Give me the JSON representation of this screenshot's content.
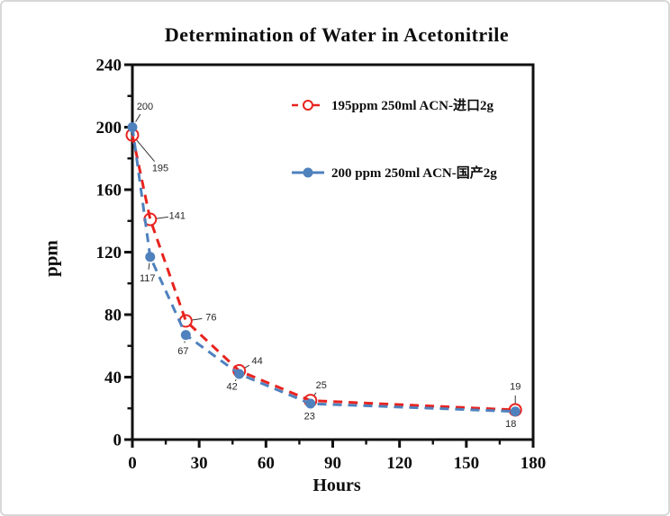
{
  "chart_data": {
    "type": "line",
    "title": "Determination of Water in Acetonitrile",
    "xlabel": "Hours",
    "ylabel": "ppm",
    "xlim": [
      0,
      180
    ],
    "ylim": [
      0,
      240
    ],
    "x_major_ticks": [
      0,
      30,
      60,
      90,
      120,
      150,
      180
    ],
    "x_minor_ticks": [
      15,
      45,
      75,
      105,
      135,
      165
    ],
    "y_major_ticks": [
      0,
      40,
      80,
      120,
      160,
      200,
      240
    ],
    "y_minor_ticks": [
      20,
      60,
      100,
      140,
      180,
      220
    ],
    "grid": false,
    "legend_position": "inside-top-center",
    "frame_color": "#111111",
    "tick_label_color": "#0d0d0d",
    "point_label_color": "#262626",
    "leader_line_color": "#333333",
    "series": [
      {
        "name": "195ppm  250ml ACN-进口2g",
        "color": "#e8231f",
        "line_style": "dashed",
        "marker": "open-circle",
        "x": [
          0,
          8,
          24,
          48,
          80,
          172
        ],
        "values": [
          195,
          141,
          76,
          44,
          25,
          19
        ],
        "point_labels": [
          "195",
          "141",
          "76",
          "44",
          "25",
          "19"
        ],
        "label_offsets": [
          [
            31,
            37
          ],
          [
            30,
            -4
          ],
          [
            28,
            -4
          ],
          [
            20,
            -11
          ],
          [
            12,
            -17
          ],
          [
            0,
            -26
          ]
        ]
      },
      {
        "name": "200 ppm 250ml ACN-国产2g",
        "color": "#4f81bd",
        "line_style": "dashed",
        "marker": "filled-circle",
        "x": [
          0,
          8,
          24,
          48,
          80,
          172
        ],
        "values": [
          200,
          117,
          67,
          42,
          23,
          18
        ],
        "point_labels": [
          "200",
          "117",
          "67",
          "42",
          "23",
          "18"
        ],
        "label_offsets": [
          [
            14,
            -23
          ],
          [
            -3,
            24
          ],
          [
            -3,
            18
          ],
          [
            -8,
            14
          ],
          [
            -1,
            14
          ],
          [
            -5,
            14
          ]
        ]
      }
    ]
  }
}
